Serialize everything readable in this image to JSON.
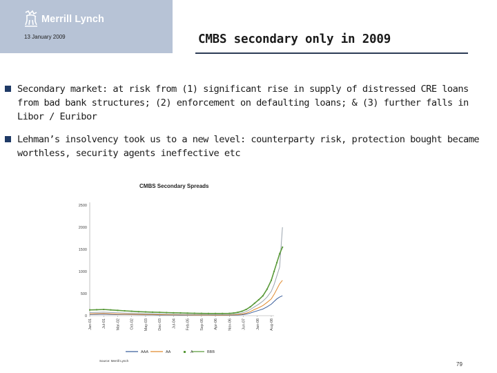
{
  "header": {
    "logo_text": "Merrill Lynch",
    "date": "13 January 2009",
    "title": "CMBS secondary only in 2009"
  },
  "bullets": [
    "Secondary market:  at risk from (1) significant rise in supply of distressed CRE loans from bad bank structures; (2) enforcement on defaulting loans; & (3) further falls in Libor / Euribor",
    "Lehman’s insolvency took us to a new level:  counterparty risk, protection bought became worthless, security agents ineffective etc"
  ],
  "page_number": "79",
  "colors": {
    "accent": "#1f3a66",
    "logo_bg": "#b7c3d6",
    "series_aaa": "#3b5f9c",
    "series_aa": "#e08a2e",
    "series_a": "#9aa3ad",
    "series_bbb": "#5a9a3a"
  },
  "chart_data": {
    "type": "line",
    "title": "CMBS Secondary Spreads",
    "source": "Source: Merrill Lynch",
    "ylim": [
      0,
      2500
    ],
    "yticks": [
      0,
      500,
      1000,
      1500,
      2000,
      2500
    ],
    "ytick_labels": [
      "0",
      "500",
      "1000",
      "1500",
      "2000",
      "2500"
    ],
    "xtick_labels": [
      "Jan-01",
      "Jul-01",
      "Mar-02",
      "Oct-02",
      "May-03",
      "Dec-03",
      "Jul-04",
      "Feb-05",
      "Sep-05",
      "Apr-06",
      "Nov-06",
      "Jun-07",
      "Jan-08",
      "Aug-08"
    ],
    "grid": false,
    "legend": "bottom",
    "x": [
      0,
      0.5,
      1,
      1.5,
      2,
      2.5,
      3,
      3.5,
      4,
      4.5,
      5,
      5.5,
      6,
      6.5,
      7,
      7.5,
      8,
      8.5,
      9,
      9.5,
      10,
      10.3,
      10.6,
      10.9,
      11.2,
      11.5,
      11.8,
      12.1,
      12.4,
      12.7,
      13.0,
      13.2,
      13.4,
      13.6,
      13.8
    ],
    "series": [
      {
        "name": "AAA",
        "color": "#3b5f9c",
        "values": [
          30,
          32,
          35,
          30,
          28,
          26,
          24,
          22,
          20,
          18,
          16,
          15,
          14,
          13,
          12,
          12,
          11,
          11,
          10,
          10,
          10,
          12,
          15,
          22,
          35,
          60,
          90,
          120,
          150,
          200,
          260,
          320,
          380,
          420,
          450
        ]
      },
      {
        "name": "AA",
        "color": "#e08a2e",
        "values": [
          40,
          45,
          48,
          42,
          38,
          35,
          32,
          30,
          28,
          26,
          24,
          22,
          20,
          18,
          17,
          16,
          15,
          15,
          14,
          14,
          15,
          18,
          24,
          35,
          55,
          90,
          140,
          180,
          230,
          300,
          380,
          480,
          600,
          720,
          800
        ]
      },
      {
        "name": "A",
        "color": "#9aa3ad",
        "values": [
          70,
          75,
          80,
          72,
          65,
          60,
          55,
          50,
          46,
          42,
          38,
          35,
          32,
          30,
          28,
          27,
          26,
          25,
          25,
          25,
          26,
          32,
          42,
          60,
          90,
          140,
          200,
          260,
          330,
          420,
          550,
          700,
          900,
          1100,
          2000
        ]
      },
      {
        "name": "BBB",
        "color": "#5a9a3a",
        "values": [
          130,
          135,
          140,
          130,
          120,
          110,
          100,
          90,
          85,
          80,
          75,
          70,
          65,
          62,
          58,
          55,
          52,
          50,
          50,
          50,
          52,
          60,
          75,
          100,
          140,
          200,
          280,
          360,
          450,
          600,
          800,
          1000,
          1200,
          1400,
          1550
        ]
      }
    ]
  }
}
